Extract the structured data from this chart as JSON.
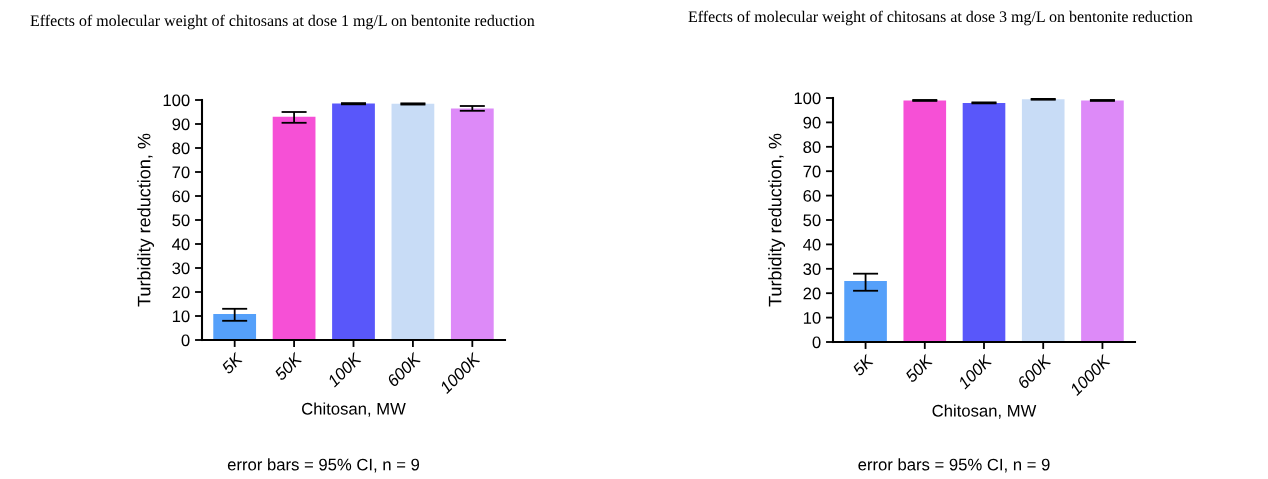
{
  "chart_data": [
    {
      "type": "bar",
      "title": "Effects of molecular weight of chitosans at dose 1 mg/L on bentonite reduction",
      "xlabel": "Chitosan, MW",
      "ylabel": "Turbidity reduction, %",
      "annotations": [
        "error bars = 95% CI, n = 9"
      ],
      "categories": [
        "5K",
        "50K",
        "100K",
        "600K",
        "1000K"
      ],
      "values": [
        10.8,
        93,
        98.5,
        98.4,
        96.5
      ],
      "colors": [
        "#55a0fa",
        "#f650d6",
        "#5957fa",
        "#c8dcf6",
        "#dd8af8"
      ],
      "errors": [
        [
          8,
          13
        ],
        [
          90.5,
          95
        ],
        [
          98.2,
          98.7
        ],
        [
          98.1,
          98.6
        ],
        [
          95.5,
          97.5
        ]
      ],
      "ylim": [
        0,
        100
      ],
      "yticks": [
        0,
        10,
        20,
        30,
        40,
        50,
        60,
        70,
        80,
        90,
        100
      ],
      "grid": false,
      "legend": false
    },
    {
      "type": "bar",
      "title": "Effects of molecular weight of chitosans at dose 3 mg/L on bentonite reduction",
      "xlabel": "Chitosan, MW",
      "ylabel": "Turbidity reduction, %",
      "annotations": [
        "error bars = 95% CI, n = 9"
      ],
      "categories": [
        "5K",
        "50K",
        "100K",
        "600K",
        "1000K"
      ],
      "values": [
        25,
        99,
        98,
        99.5,
        99
      ],
      "colors": [
        "#55a0fa",
        "#f650d6",
        "#5957fa",
        "#c8dcf6",
        "#dd8af8"
      ],
      "errors": [
        [
          21,
          28
        ],
        [
          98.8,
          99.2
        ],
        [
          97.8,
          98.2
        ],
        [
          99.3,
          99.7
        ],
        [
          98.8,
          99.2
        ]
      ],
      "ylim": [
        0,
        100
      ],
      "yticks": [
        0,
        10,
        20,
        30,
        40,
        50,
        60,
        70,
        80,
        90,
        100
      ],
      "grid": false,
      "legend": false
    }
  ]
}
